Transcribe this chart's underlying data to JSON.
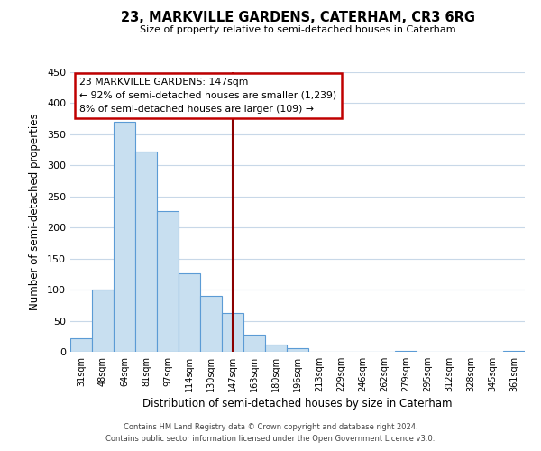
{
  "title": "23, MARKVILLE GARDENS, CATERHAM, CR3 6RG",
  "subtitle": "Size of property relative to semi-detached houses in Caterham",
  "xlabel": "Distribution of semi-detached houses by size in Caterham",
  "ylabel": "Number of semi-detached properties",
  "footer_line1": "Contains HM Land Registry data © Crown copyright and database right 2024.",
  "footer_line2": "Contains public sector information licensed under the Open Government Licence v3.0.",
  "annotation_title": "23 MARKVILLE GARDENS: 147sqm",
  "annotation_line1": "← 92% of semi-detached houses are smaller (1,239)",
  "annotation_line2": "8% of semi-detached houses are larger (109) →",
  "bar_color": "#c8dff0",
  "bar_edge_color": "#5b9bd5",
  "marker_line_color": "#8b0000",
  "annotation_box_edge_color": "#c00000",
  "background_color": "#ffffff",
  "grid_color": "#c8d8e8",
  "categories": [
    "31sqm",
    "48sqm",
    "64sqm",
    "81sqm",
    "97sqm",
    "114sqm",
    "130sqm",
    "147sqm",
    "163sqm",
    "180sqm",
    "196sqm",
    "213sqm",
    "229sqm",
    "246sqm",
    "262sqm",
    "279sqm",
    "295sqm",
    "312sqm",
    "328sqm",
    "345sqm",
    "361sqm"
  ],
  "values": [
    22,
    100,
    370,
    322,
    226,
    126,
    90,
    63,
    28,
    12,
    6,
    0,
    0,
    0,
    0,
    1,
    0,
    0,
    0,
    0,
    2
  ],
  "marker_index": 7,
  "ylim": [
    0,
    450
  ],
  "yticks": [
    0,
    50,
    100,
    150,
    200,
    250,
    300,
    350,
    400,
    450
  ]
}
